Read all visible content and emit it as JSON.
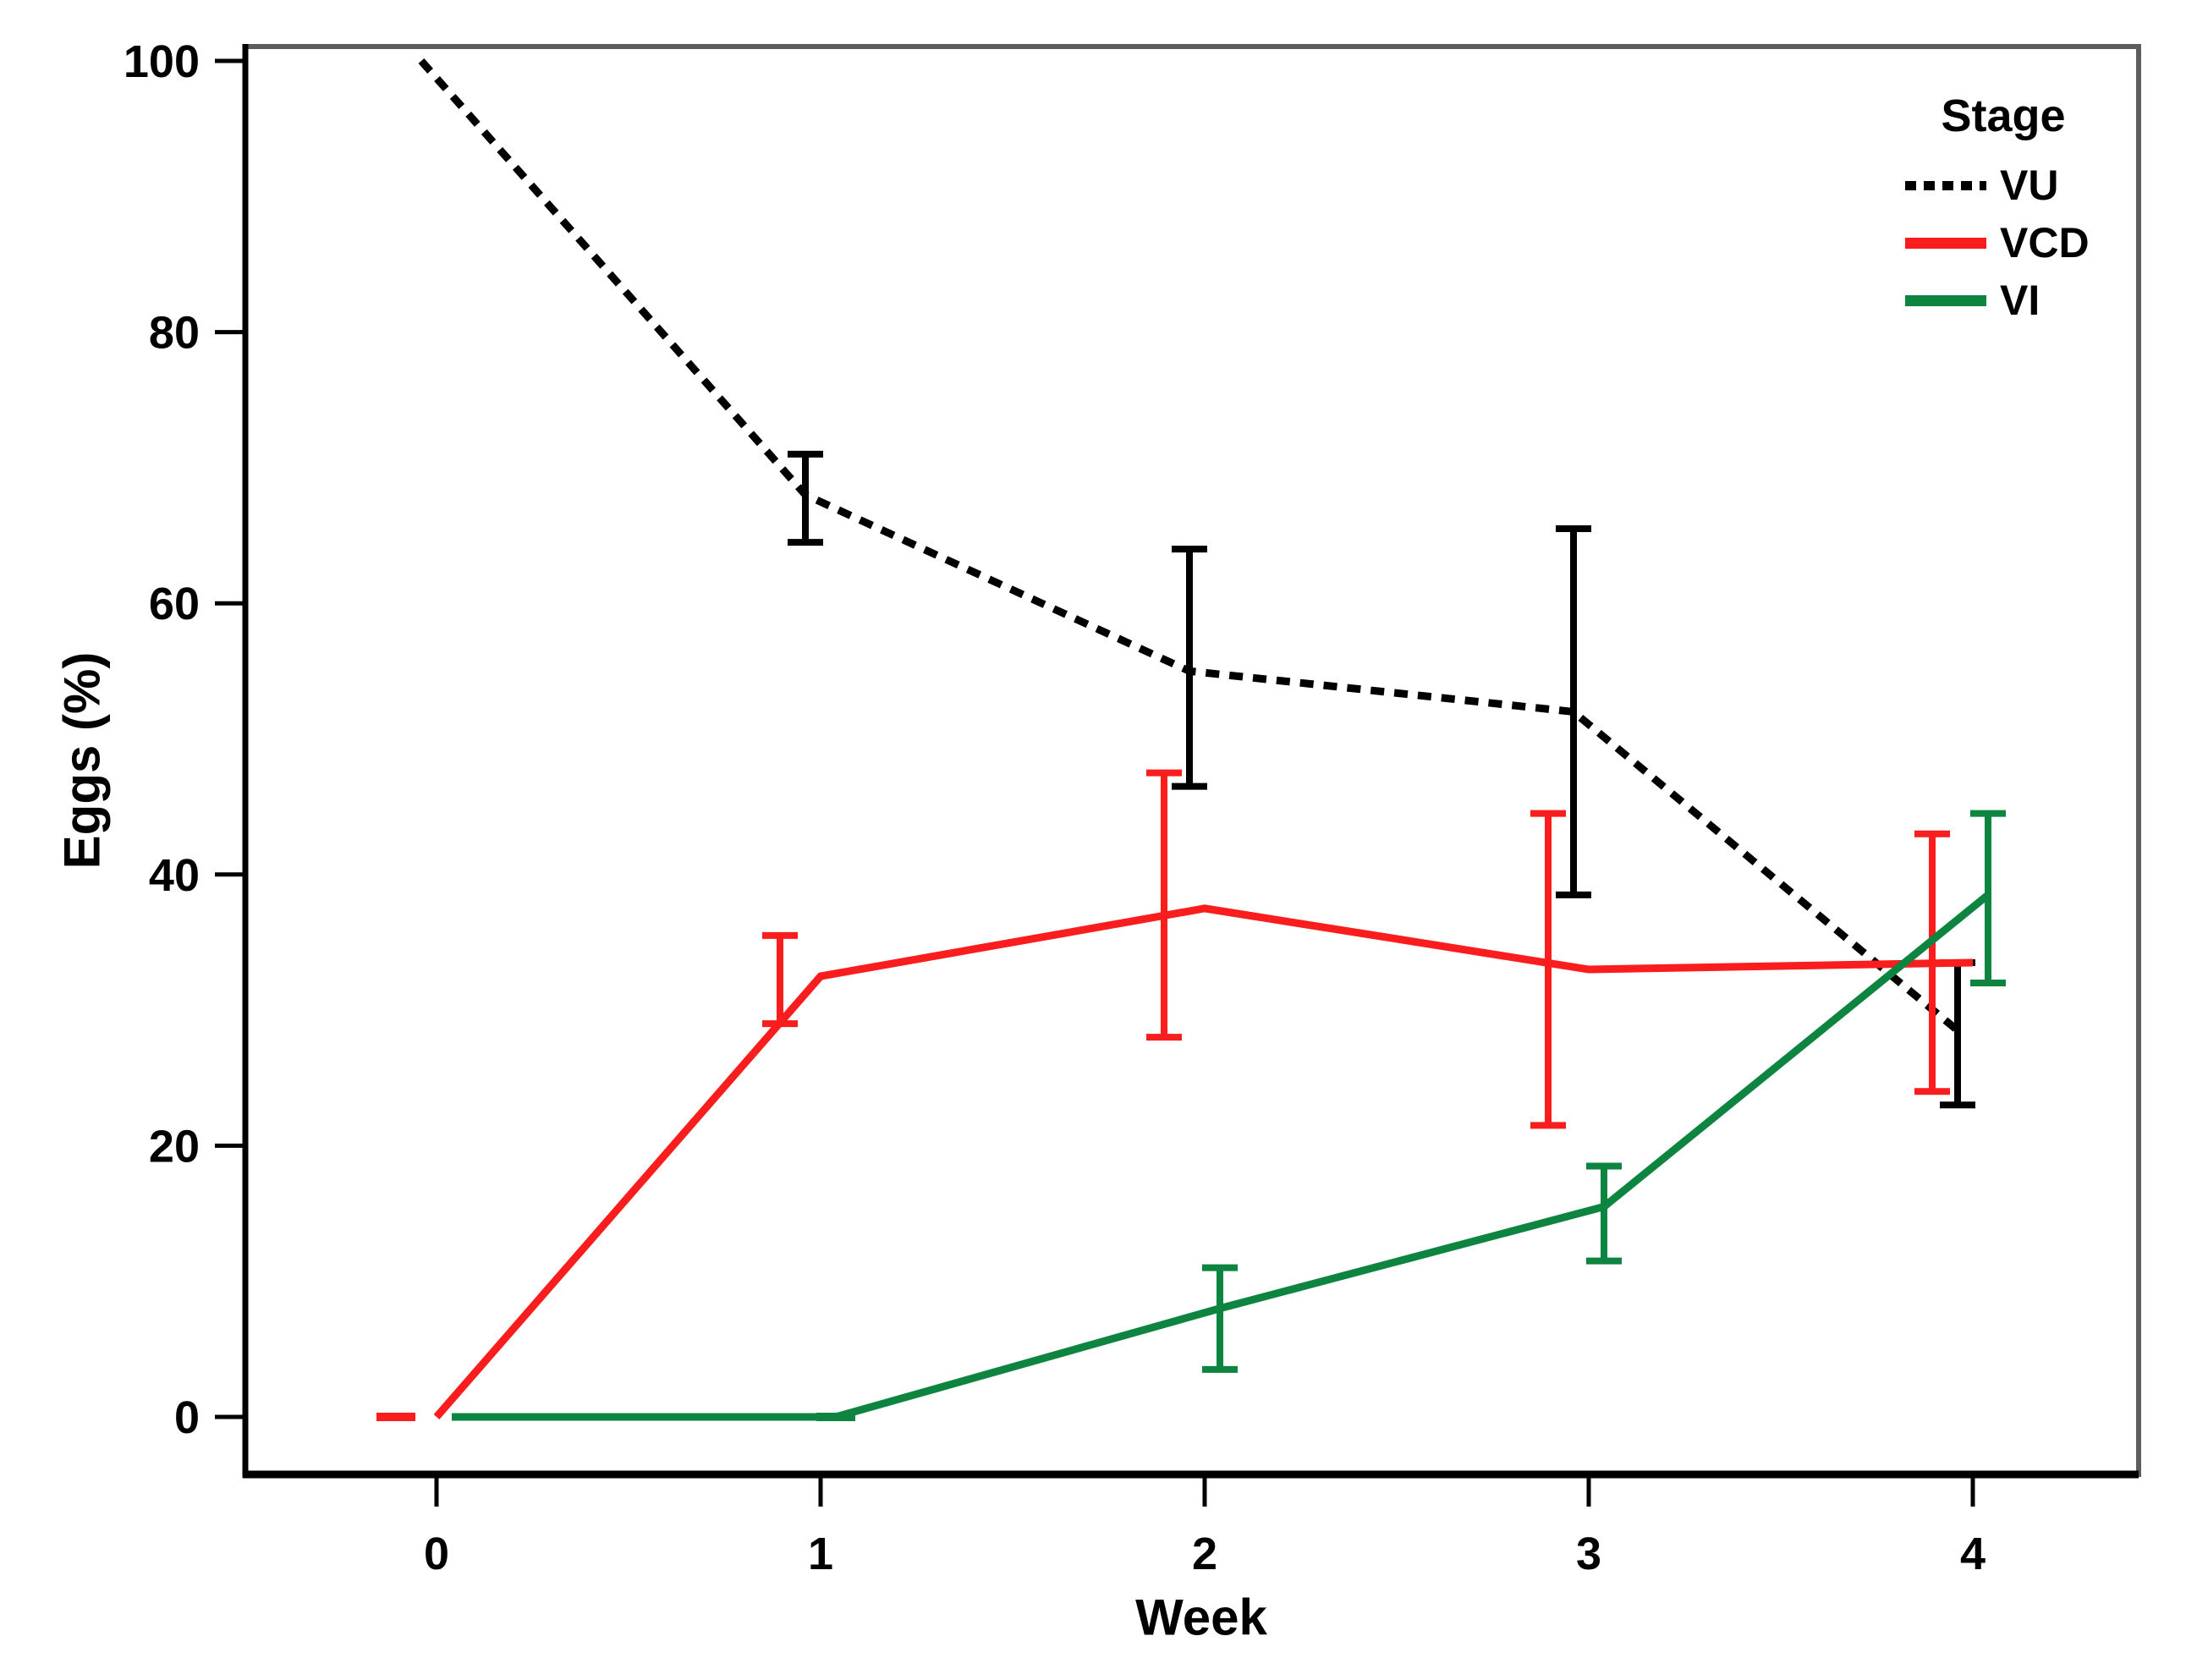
{
  "chart_data": {
    "type": "line",
    "title": "",
    "xlabel": "Week",
    "ylabel": "Eggs (%)",
    "x_values": [
      0,
      1,
      2,
      3,
      4
    ],
    "xtick_labels": [
      "0",
      "1",
      "2",
      "3",
      "4"
    ],
    "yticks": [
      0,
      20,
      40,
      60,
      80,
      100
    ],
    "xlim": [
      -0.5,
      4.43
    ],
    "ylim": [
      -4,
      101
    ],
    "grid": false,
    "legend": {
      "title": "Stage",
      "position": "top-right"
    },
    "series": [
      {
        "name": "VU",
        "color": "#000000",
        "line_style": "dotted",
        "values": [
          100,
          68,
          55,
          52,
          28.5
        ],
        "error_low": [
          null,
          64.5,
          46.5,
          38.5,
          23
        ],
        "error_high": [
          null,
          71,
          64,
          65.5,
          33.5
        ]
      },
      {
        "name": "VCD",
        "color": "#F91D1D",
        "line_style": "solid",
        "values": [
          0,
          32.5,
          37.5,
          33,
          33.5
        ],
        "error_low": [
          0,
          29,
          28,
          21.5,
          24
        ],
        "error_high": [
          0,
          35.5,
          47.5,
          44.5,
          43
        ]
      },
      {
        "name": "VI",
        "color": "#0D8440",
        "line_style": "solid",
        "values": [
          0,
          0,
          8,
          15.5,
          38.5
        ],
        "error_low": [
          null,
          0,
          3.5,
          11.5,
          32
        ],
        "error_high": [
          null,
          0,
          11,
          18.5,
          44.5
        ]
      }
    ]
  }
}
